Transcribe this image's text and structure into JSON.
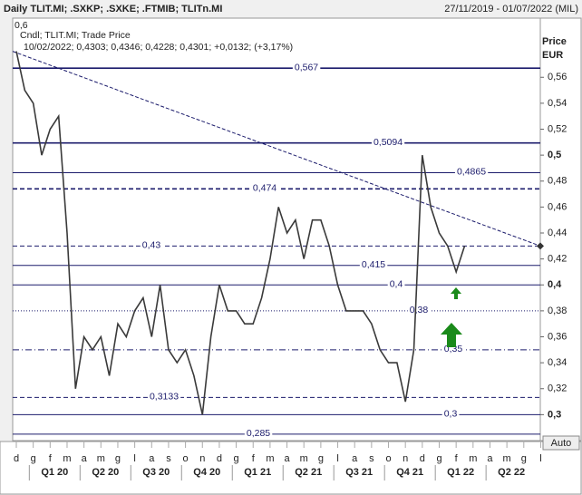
{
  "chart_data": {
    "type": "line",
    "title": "Daily TLIT.MI; .SXKP; .SXKE; .FTMIB; TLITn.MI",
    "date_range": "27/11/2019 - 01/07/2022 (MIL)",
    "legend_line": "Cndl; TLIT.MI; Trade Price",
    "ohlc_line": "10/02/2022; 0,4303; 0,4346; 0,4228; 0,4301; +0,0132; (+3,17%)",
    "y_label": "Price",
    "y_unit": "EUR",
    "button": "Auto",
    "categories": [
      "d",
      null,
      "g",
      null,
      "f",
      null,
      "m",
      null,
      "a",
      null,
      "m",
      null,
      "g",
      null,
      "l",
      null,
      "a",
      null,
      "s",
      null,
      "o",
      null,
      "n",
      null,
      "d",
      null,
      "g",
      null,
      "f",
      null,
      "m",
      null,
      "a",
      null,
      "m",
      null,
      "g",
      null,
      "l",
      null,
      "a",
      null,
      "s",
      null,
      "o",
      null,
      "n",
      null,
      "d",
      null,
      "g",
      null,
      "f",
      null,
      "m",
      null,
      "a",
      null,
      "m",
      null,
      "g",
      null,
      "l",
      null
    ],
    "quarters": [
      "Q1 20",
      "Q2 20",
      "Q3 20",
      "Q4 20",
      "Q1 21",
      "Q2 21",
      "Q3 21",
      "Q4 21",
      "Q1 22",
      "Q2 22"
    ],
    "series": [
      {
        "name": "TLIT.MI",
        "color": "#3a3a3a",
        "values": [
          0.58,
          0.55,
          0.54,
          0.5,
          0.52,
          0.53,
          0.44,
          0.32,
          0.36,
          0.35,
          0.36,
          0.33,
          0.37,
          0.36,
          0.38,
          0.39,
          0.36,
          0.4,
          0.35,
          0.34,
          0.35,
          0.33,
          0.3,
          0.36,
          0.4,
          0.38,
          0.38,
          0.37,
          0.37,
          0.39,
          0.42,
          0.46,
          0.44,
          0.45,
          0.42,
          0.45,
          0.45,
          0.43,
          0.4,
          0.38,
          0.38,
          0.38,
          0.37,
          0.35,
          0.34,
          0.34,
          0.31,
          0.35,
          0.5,
          0.46,
          0.44,
          0.43,
          0.41,
          0.43,
          null,
          null,
          null,
          null,
          null,
          null,
          null,
          null,
          null,
          null
        ]
      }
    ],
    "levels": [
      {
        "value": 0.567,
        "label": "0,567",
        "style": "solid"
      },
      {
        "value": 0.5094,
        "label": "0,5094",
        "style": "solid"
      },
      {
        "value": 0.4865,
        "label": "0,4865",
        "style": "solid"
      },
      {
        "value": 0.474,
        "label": "0,474",
        "style": "dashed"
      },
      {
        "value": 0.43,
        "label": "0,43",
        "style": "dashed"
      },
      {
        "value": 0.415,
        "label": "0,415",
        "style": "solid"
      },
      {
        "value": 0.4,
        "label": "0,4",
        "style": "solid"
      },
      {
        "value": 0.38,
        "label": "0,38",
        "style": "dotted"
      },
      {
        "value": 0.35,
        "label": "0,35",
        "style": "dashdot"
      },
      {
        "value": 0.3133,
        "label": "0,3133",
        "style": "dashed"
      },
      {
        "value": 0.3,
        "label": "0,3",
        "style": "solid"
      },
      {
        "value": 0.285,
        "label": "0,285",
        "style": "solid"
      }
    ],
    "level_color": "#1c1c6c",
    "trendline": [
      0.58,
      0.43
    ],
    "ylim": [
      0.28,
      0.6
    ],
    "yticks": [
      {
        "value": 0.3,
        "label": "0,3"
      },
      {
        "value": 0.32,
        "label": "0,32"
      },
      {
        "value": 0.34,
        "label": "0,34"
      },
      {
        "value": 0.36,
        "label": "0,36"
      },
      {
        "value": 0.38,
        "label": "0,38"
      },
      {
        "value": 0.4,
        "label": "0,4"
      },
      {
        "value": 0.42,
        "label": "0,42"
      },
      {
        "value": 0.44,
        "label": "0,44"
      },
      {
        "value": 0.46,
        "label": "0,46"
      },
      {
        "value": 0.48,
        "label": "0,48"
      },
      {
        "value": 0.5,
        "label": "0,5"
      },
      {
        "value": 0.52,
        "label": "0,52"
      },
      {
        "value": 0.54,
        "label": "0,54"
      },
      {
        "value": 0.56,
        "label": "0,56"
      },
      {
        "value": 0.6,
        "label": "0,6"
      }
    ]
  }
}
